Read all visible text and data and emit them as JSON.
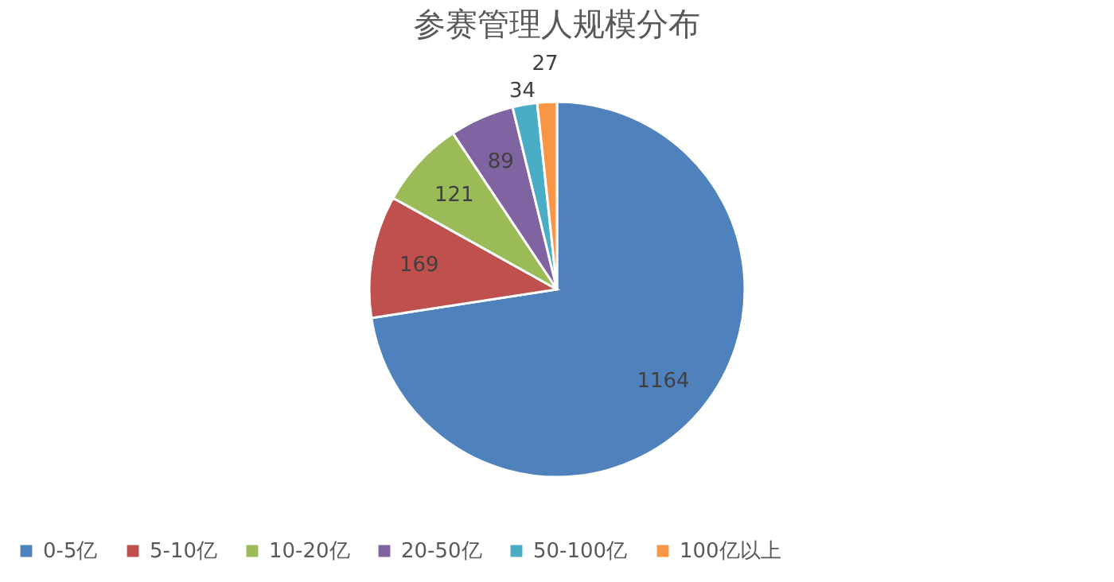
{
  "chart_data": {
    "type": "pie",
    "title": "参赛管理人规模分布",
    "categories": [
      "0-5亿",
      "5-10亿",
      "10-20亿",
      "20-50亿",
      "50-100亿",
      "100亿以上"
    ],
    "values": [
      1164,
      169,
      121,
      89,
      34,
      27
    ],
    "colors": [
      "#4f81bd",
      "#c0504d",
      "#9bbb59",
      "#8064a2",
      "#4bacc6",
      "#f79646"
    ],
    "data_labels": true,
    "legend": "bottom"
  }
}
